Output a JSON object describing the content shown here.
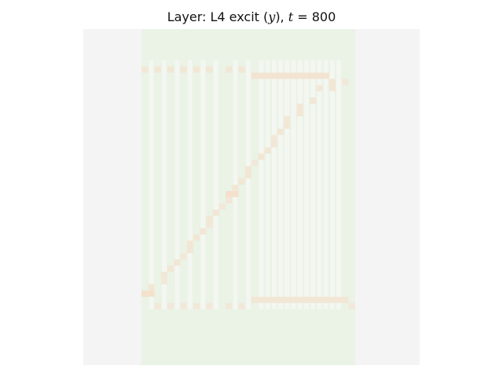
{
  "chart_data": {
    "type": "heatmap",
    "title": {
      "prefix": "Layer: L4 excit (",
      "var": "y",
      "middle": "), ",
      "tvar": "t",
      "suffix": " = 800"
    },
    "xlabel": "",
    "ylabel": "",
    "axes_visible": false,
    "colormap": {
      "background": "#f4f4f4",
      "field": "#eaf3e6",
      "low": "#f4f4f4",
      "mid": "#f0f4ee",
      "high": "#f4dcc4"
    },
    "grid_rows": 54,
    "grid_cols": 52,
    "field_col_range": [
      9,
      41
    ],
    "cells": [
      {
        "r": 6,
        "c": 9,
        "v": 0.6
      },
      {
        "r": 6,
        "c": 11,
        "v": 0.6
      },
      {
        "r": 6,
        "c": 13,
        "v": 0.6
      },
      {
        "r": 6,
        "c": 15,
        "v": 0.6
      },
      {
        "r": 6,
        "c": 17,
        "v": 0.6
      },
      {
        "r": 6,
        "c": 19,
        "v": 0.6
      },
      {
        "r": 6,
        "c": 22,
        "v": 0.6
      },
      {
        "r": 6,
        "c": 24,
        "v": 0.6
      },
      {
        "r": 7,
        "c": 26,
        "v": 0.7
      },
      {
        "r": 7,
        "c": 27,
        "v": 0.7
      },
      {
        "r": 7,
        "c": 28,
        "v": 0.7
      },
      {
        "r": 7,
        "c": 29,
        "v": 0.7
      },
      {
        "r": 7,
        "c": 30,
        "v": 0.7
      },
      {
        "r": 7,
        "c": 31,
        "v": 0.7
      },
      {
        "r": 7,
        "c": 32,
        "v": 0.7
      },
      {
        "r": 7,
        "c": 33,
        "v": 0.7
      },
      {
        "r": 7,
        "c": 34,
        "v": 0.7
      },
      {
        "r": 7,
        "c": 35,
        "v": 0.7
      },
      {
        "r": 7,
        "c": 36,
        "v": 0.7
      },
      {
        "r": 7,
        "c": 37,
        "v": 0.7
      },
      {
        "r": 8,
        "c": 38,
        "v": 0.6
      },
      {
        "r": 8,
        "c": 40,
        "v": 0.5
      },
      {
        "r": 9,
        "c": 36,
        "v": 0.5
      },
      {
        "r": 9,
        "c": 38,
        "v": 0.6
      },
      {
        "r": 11,
        "c": 35,
        "v": 0.6
      },
      {
        "r": 12,
        "c": 33,
        "v": 0.6
      },
      {
        "r": 13,
        "c": 33,
        "v": 0.6
      },
      {
        "r": 14,
        "c": 31,
        "v": 0.5
      },
      {
        "r": 15,
        "c": 31,
        "v": 0.6
      },
      {
        "r": 16,
        "c": 30,
        "v": 0.6
      },
      {
        "r": 17,
        "c": 29,
        "v": 0.5
      },
      {
        "r": 18,
        "c": 29,
        "v": 0.6
      },
      {
        "r": 19,
        "c": 28,
        "v": 0.6
      },
      {
        "r": 20,
        "c": 27,
        "v": 0.6
      },
      {
        "r": 21,
        "c": 26,
        "v": 0.5
      },
      {
        "r": 22,
        "c": 25,
        "v": 0.6
      },
      {
        "r": 23,
        "c": 25,
        "v": 0.6
      },
      {
        "r": 24,
        "c": 24,
        "v": 0.6
      },
      {
        "r": 25,
        "c": 23,
        "v": 0.6
      },
      {
        "r": 26,
        "c": 22,
        "v": 0.8
      },
      {
        "r": 26,
        "c": 23,
        "v": 0.8
      },
      {
        "r": 27,
        "c": 22,
        "v": 0.6
      },
      {
        "r": 28,
        "c": 21,
        "v": 0.5
      },
      {
        "r": 29,
        "c": 20,
        "v": 0.6
      },
      {
        "r": 30,
        "c": 19,
        "v": 0.6
      },
      {
        "r": 31,
        "c": 19,
        "v": 0.5
      },
      {
        "r": 32,
        "c": 18,
        "v": 0.6
      },
      {
        "r": 33,
        "c": 17,
        "v": 0.6
      },
      {
        "r": 34,
        "c": 16,
        "v": 0.6
      },
      {
        "r": 35,
        "c": 16,
        "v": 0.6
      },
      {
        "r": 36,
        "c": 15,
        "v": 0.5
      },
      {
        "r": 37,
        "c": 14,
        "v": 0.6
      },
      {
        "r": 38,
        "c": 13,
        "v": 0.6
      },
      {
        "r": 39,
        "c": 12,
        "v": 0.6
      },
      {
        "r": 40,
        "c": 12,
        "v": 0.5
      },
      {
        "r": 41,
        "c": 10,
        "v": 0.6
      },
      {
        "r": 42,
        "c": 9,
        "v": 0.8
      },
      {
        "r": 42,
        "c": 10,
        "v": 0.8
      },
      {
        "r": 43,
        "c": 26,
        "v": 0.6
      },
      {
        "r": 43,
        "c": 27,
        "v": 0.6
      },
      {
        "r": 43,
        "c": 28,
        "v": 0.6
      },
      {
        "r": 43,
        "c": 29,
        "v": 0.6
      },
      {
        "r": 43,
        "c": 30,
        "v": 0.6
      },
      {
        "r": 43,
        "c": 31,
        "v": 0.6
      },
      {
        "r": 43,
        "c": 32,
        "v": 0.6
      },
      {
        "r": 43,
        "c": 33,
        "v": 0.6
      },
      {
        "r": 43,
        "c": 34,
        "v": 0.6
      },
      {
        "r": 43,
        "c": 35,
        "v": 0.6
      },
      {
        "r": 43,
        "c": 36,
        "v": 0.6
      },
      {
        "r": 43,
        "c": 37,
        "v": 0.6
      },
      {
        "r": 43,
        "c": 38,
        "v": 0.6
      },
      {
        "r": 43,
        "c": 39,
        "v": 0.6
      },
      {
        "r": 43,
        "c": 40,
        "v": 0.6
      },
      {
        "r": 44,
        "c": 11,
        "v": 0.5
      },
      {
        "r": 44,
        "c": 13,
        "v": 0.5
      },
      {
        "r": 44,
        "c": 15,
        "v": 0.5
      },
      {
        "r": 44,
        "c": 17,
        "v": 0.5
      },
      {
        "r": 44,
        "c": 19,
        "v": 0.5
      },
      {
        "r": 44,
        "c": 22,
        "v": 0.5
      },
      {
        "r": 44,
        "c": 24,
        "v": 0.5
      },
      {
        "r": 44,
        "c": 41,
        "v": 0.5
      }
    ],
    "stripe_cols": [
      10,
      12,
      14,
      16,
      18,
      20,
      23,
      25,
      27,
      28,
      29,
      30,
      31,
      32,
      33,
      34,
      35,
      36,
      37,
      38,
      39
    ]
  }
}
